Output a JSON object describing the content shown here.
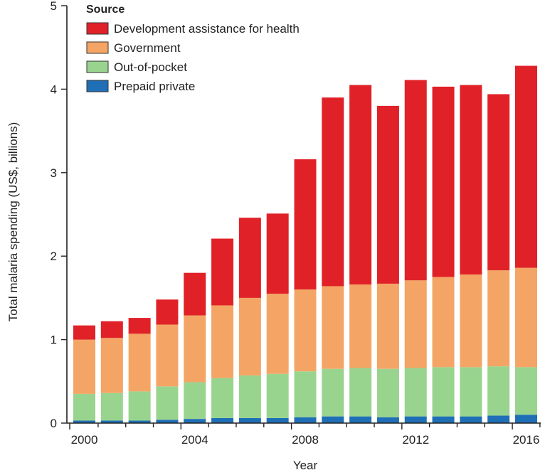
{
  "chart_data": {
    "type": "bar",
    "stacked": true,
    "xlabel": "Year",
    "ylabel": "Total malaria spending (US$, billions)",
    "ylim": [
      0,
      5
    ],
    "yticks": [
      "0",
      "1",
      "2",
      "3",
      "4",
      "5"
    ],
    "xticks": [
      "2000",
      "2004",
      "2008",
      "2012",
      "2016"
    ],
    "categories": [
      2000,
      2001,
      2002,
      2003,
      2004,
      2005,
      2006,
      2007,
      2008,
      2009,
      2010,
      2011,
      2012,
      2013,
      2014,
      2015,
      2016
    ],
    "grid": false,
    "legend": {
      "title": "Source",
      "placement": "top-left"
    },
    "series": [
      {
        "name": "Prepaid private",
        "color": "#1f6fb6",
        "values": [
          0.03,
          0.03,
          0.03,
          0.04,
          0.05,
          0.06,
          0.06,
          0.06,
          0.07,
          0.08,
          0.08,
          0.07,
          0.08,
          0.08,
          0.08,
          0.09,
          0.1
        ]
      },
      {
        "name": "Out-of-pocket",
        "color": "#99d48f",
        "values": [
          0.32,
          0.33,
          0.35,
          0.4,
          0.44,
          0.48,
          0.51,
          0.53,
          0.55,
          0.57,
          0.58,
          0.58,
          0.58,
          0.59,
          0.59,
          0.59,
          0.57
        ]
      },
      {
        "name": "Government",
        "color": "#f4a565",
        "values": [
          0.65,
          0.66,
          0.69,
          0.74,
          0.8,
          0.87,
          0.93,
          0.96,
          0.98,
          0.99,
          1.0,
          1.02,
          1.05,
          1.08,
          1.11,
          1.15,
          1.19
        ]
      },
      {
        "name": "Development assistance for health",
        "color": "#e02228",
        "values": [
          0.17,
          0.2,
          0.19,
          0.3,
          0.51,
          0.8,
          0.96,
          0.96,
          1.56,
          2.26,
          2.39,
          2.13,
          2.4,
          2.28,
          2.27,
          2.11,
          2.42
        ]
      }
    ]
  }
}
